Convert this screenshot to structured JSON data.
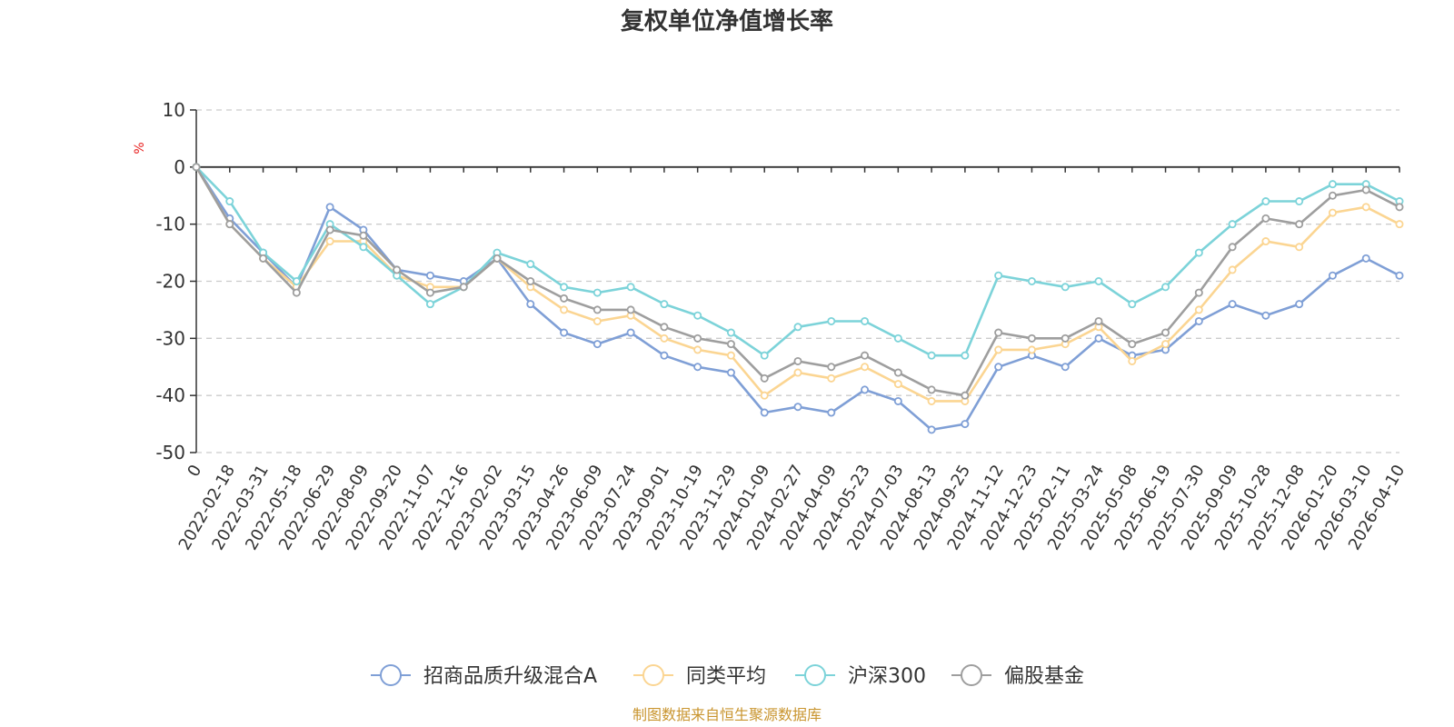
{
  "chart_data": {
    "type": "line",
    "title": "复权单位净值增长率",
    "ylabel": "%",
    "ylim": [
      -50,
      10
    ],
    "yticks": [
      10,
      0,
      -10,
      -20,
      -30,
      -40,
      -50
    ],
    "grid": true,
    "legend_position": "bottom",
    "source_note": "制图数据来自恒生聚源数据库",
    "x_labels": [
      "0",
      "2022-02-18",
      "2022-03-31",
      "2022-05-18",
      "2022-06-29",
      "2022-08-09",
      "2022-09-20",
      "2022-11-07",
      "2022-12-16",
      "2023-02-02",
      "2023-03-15",
      "2023-04-26",
      "2023-06-09",
      "2023-07-24",
      "2023-09-01",
      "2023-10-19",
      "2023-11-29",
      "2024-01-09",
      "2024-02-27",
      "2024-04-09",
      "2024-05-23",
      "2024-07-03",
      "2024-08-13",
      "2024-09-25",
      "2024-11-12",
      "2024-12-23",
      "2025-02-11",
      "2025-03-24",
      "2025-05-08",
      "2025-06-19",
      "2025-07-30",
      "2025-09-09",
      "2025-10-28",
      "2025-12-08",
      "2026-01-20",
      "2026-03-10",
      "2026-04-10"
    ],
    "series": [
      {
        "name": "招商品质升级混合A",
        "color": "#7f9fd6",
        "values": [
          0,
          -9,
          -15,
          -21,
          -7,
          -11,
          -18,
          -19,
          -20,
          -16,
          -24,
          -29,
          -31,
          -29,
          -33,
          -35,
          -36,
          -43,
          -42,
          -43,
          -39,
          -41,
          -46,
          -45,
          -35,
          -33,
          -35,
          -30,
          -33,
          -32,
          -27,
          -24,
          -26,
          -24,
          -19,
          -16,
          -19
        ]
      },
      {
        "name": "同类平均",
        "color": "#fbd592",
        "values": [
          0,
          -10,
          -16,
          -21,
          -13,
          -13,
          -19,
          -21,
          -21,
          -16,
          -21,
          -25,
          -27,
          -26,
          -30,
          -32,
          -33,
          -40,
          -36,
          -37,
          -35,
          -38,
          -41,
          -41,
          -32,
          -32,
          -31,
          -28,
          -34,
          -31,
          -25,
          -18,
          -13,
          -14,
          -8,
          -7,
          -10
        ]
      },
      {
        "name": "沪深300",
        "color": "#7cd3d9",
        "values": [
          0,
          -6,
          -15,
          -20,
          -10,
          -14,
          -19,
          -24,
          -21,
          -15,
          -17,
          -21,
          -22,
          -21,
          -24,
          -26,
          -29,
          -33,
          -28,
          -27,
          -27,
          -30,
          -33,
          -33,
          -19,
          -20,
          -21,
          -20,
          -24,
          -21,
          -15,
          -10,
          -6,
          -6,
          -3,
          -3,
          -6
        ]
      },
      {
        "name": "偏股基金",
        "color": "#9e9e9e",
        "values": [
          0,
          -10,
          -16,
          -22,
          -11,
          -12,
          -18,
          -22,
          -21,
          -16,
          -20,
          -23,
          -25,
          -25,
          -28,
          -30,
          -31,
          -37,
          -34,
          -35,
          -33,
          -36,
          -39,
          -40,
          -29,
          -30,
          -30,
          -27,
          -31,
          -29,
          -22,
          -14,
          -9,
          -10,
          -5,
          -4,
          -7
        ]
      }
    ]
  }
}
